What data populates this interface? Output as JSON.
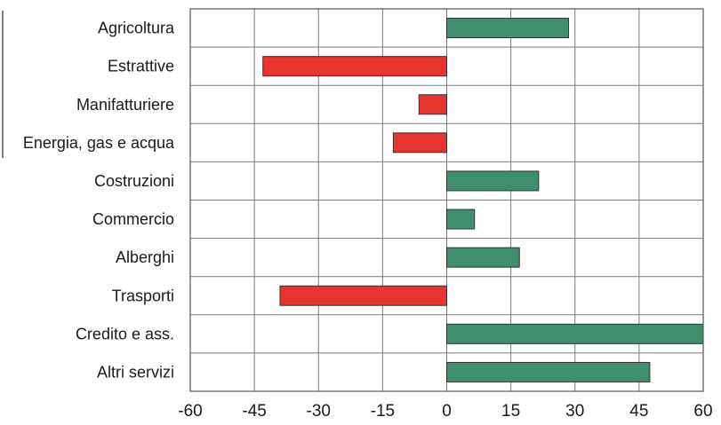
{
  "chart_data": {
    "type": "bar",
    "orientation": "horizontal",
    "title": "",
    "xlabel": "",
    "ylabel": "",
    "categories": [
      "Agricoltura",
      "Estrattive",
      "Manifatturiere",
      "Energia, gas e acqua",
      "Costruzioni",
      "Commercio",
      "Alberghi",
      "Trasporti",
      "Credito e ass.",
      "Altri servizi"
    ],
    "values": [
      28.5,
      -43,
      -6.5,
      -12.5,
      21.5,
      6.5,
      17,
      -39,
      60,
      47.5
    ],
    "xlim": [
      -60,
      60
    ],
    "xticks": [
      -60,
      -45,
      -30,
      -15,
      0,
      15,
      30,
      45,
      60
    ],
    "xtick_labels": [
      "-60",
      "-45",
      "-30",
      "-15",
      "0",
      "15",
      "30",
      "45",
      "60"
    ],
    "grid": true,
    "colors": {
      "positive": "#3f8f6e",
      "negative": "#e8342f"
    }
  }
}
